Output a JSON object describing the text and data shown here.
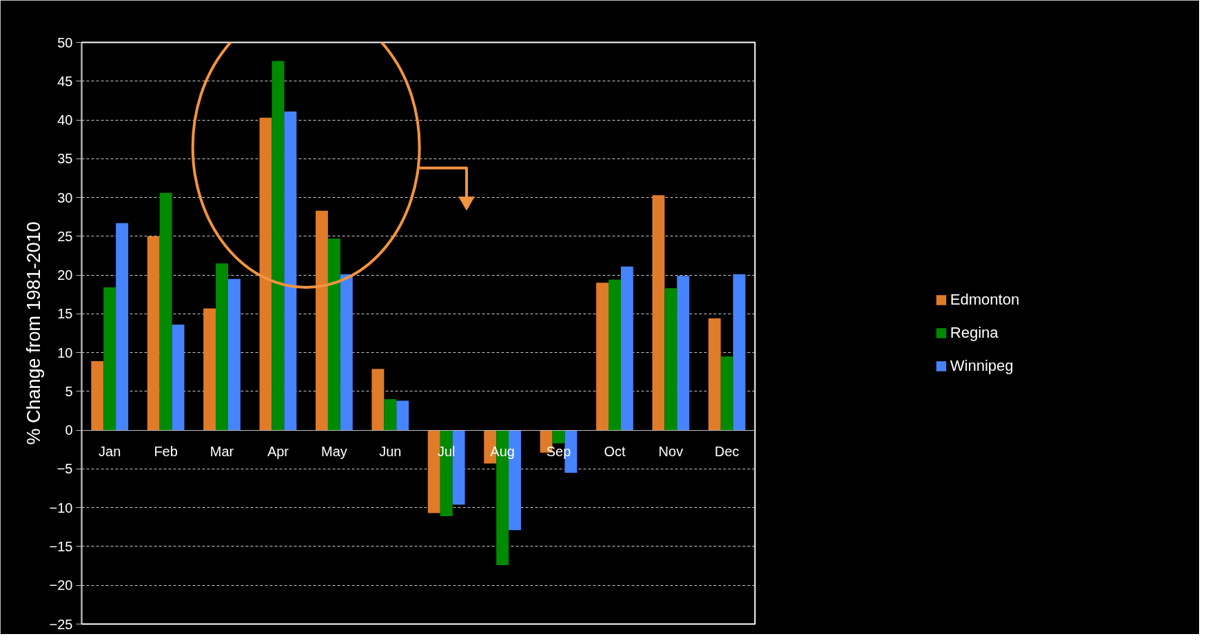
{
  "chart_data": {
    "type": "bar",
    "ylabel": "% Change from 1981-2010",
    "categories": [
      "Jan",
      "Feb",
      "Mar",
      "Apr",
      "May",
      "Jun",
      "Jul",
      "Aug",
      "Sep",
      "Oct",
      "Nov",
      "Dec"
    ],
    "series": [
      {
        "name": "Edmonton",
        "color": "#e07b2a",
        "values": [
          8.9,
          25.0,
          15.7,
          40.3,
          28.3,
          7.9,
          -10.7,
          -4.3,
          -2.9,
          19.0,
          30.3,
          14.4
        ]
      },
      {
        "name": "Regina",
        "color": "#008a00",
        "values": [
          18.4,
          30.6,
          21.5,
          47.6,
          24.7,
          4.0,
          -11.1,
          -17.4,
          -1.7,
          19.4,
          18.3,
          9.5
        ]
      },
      {
        "name": "Winnipeg",
        "color": "#4684fe",
        "values": [
          26.7,
          13.6,
          19.5,
          41.1,
          20.1,
          3.8,
          -9.6,
          -12.9,
          -5.5,
          21.1,
          19.9,
          20.1
        ]
      }
    ],
    "ylim": [
      -25,
      50
    ],
    "yticks": [
      -25,
      -20,
      -15,
      -10,
      -5,
      0,
      5,
      10,
      15,
      20,
      25,
      30,
      35,
      40,
      45,
      50
    ],
    "grid": "y",
    "legend": "right"
  }
}
